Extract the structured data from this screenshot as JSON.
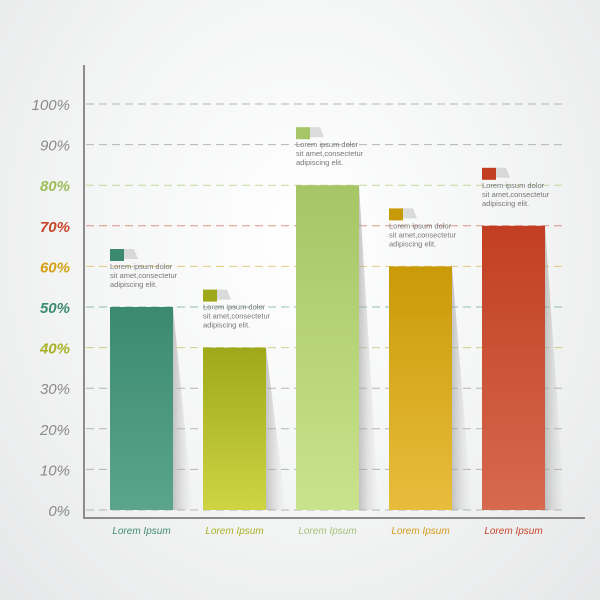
{
  "chart_data": {
    "type": "bar",
    "categories": [
      "Lorem Ipsum",
      "Lorem Ipsum",
      "Lorem Ipsum",
      "Lorem Ipsum",
      "Lorem Ipsum"
    ],
    "values": [
      50,
      40,
      80,
      60,
      70
    ],
    "ylim": [
      0,
      100
    ],
    "yticks": [
      "0%",
      "10%",
      "20%",
      "30%",
      "40%",
      "50%",
      "60%",
      "70%",
      "80%",
      "90%",
      "100%"
    ],
    "ytick_colors": [
      "#8a8a8a",
      "#8a8a8a",
      "#8a8a8a",
      "#8a8a8a",
      "#a8b224",
      "#3d8c74",
      "#d4a017",
      "#c8442a",
      "#9cbd5a",
      "#8a8a8a",
      "#8a8a8a"
    ],
    "grid": true,
    "bar_colors": [
      {
        "top": "#3b8a70",
        "bottom": "#5aa58c",
        "label": "#3d8c74"
      },
      {
        "top": "#9ea81a",
        "bottom": "#cdd544",
        "label": "#a8b224"
      },
      {
        "top": "#a5c566",
        "bottom": "#c9e38c",
        "label": "#a5c27a"
      },
      {
        "top": "#c99a08",
        "bottom": "#e8bd3c",
        "label": "#d49a1a"
      },
      {
        "top": "#c23e22",
        "bottom": "#d66a4e",
        "label": "#c8442a"
      }
    ],
    "annotations": [
      [
        "Lorem ipsum dolor",
        "sit amet,consectetur",
        "adipiscing elit."
      ],
      [
        "Lorem ipsum dolor",
        "sit amet,consectetur",
        "adipiscing elit."
      ],
      [
        "Lorem ipsum dolor",
        "sit amet,consectetur",
        "adipiscing elit."
      ],
      [
        "Lorem ipsum dolor",
        "sit amet,consectetur",
        "adipiscing elit."
      ],
      [
        "Lorem ipsum dolor",
        "sit amet,consectetur",
        "adipiscing elit."
      ]
    ]
  }
}
